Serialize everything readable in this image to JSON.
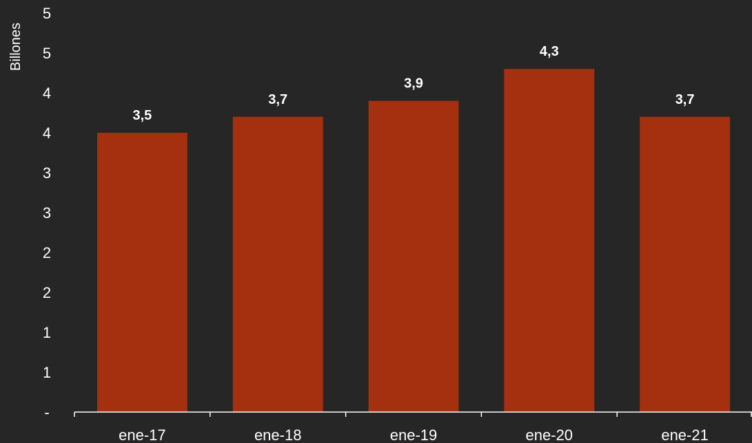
{
  "chart_data": {
    "type": "bar",
    "categories": [
      "ene-17",
      "ene-18",
      "ene-19",
      "ene-20",
      "ene-21"
    ],
    "values": [
      3.5,
      3.7,
      3.9,
      4.3,
      3.7
    ],
    "data_labels": [
      "3,5",
      "3,7",
      "3,9",
      "4,3",
      "3,7"
    ],
    "ylabel": "Billones",
    "ylim": [
      0,
      5
    ],
    "y_tick_labels": [
      "-",
      "1",
      "1",
      "2",
      "2",
      "3",
      "3",
      "4",
      "4",
      "5",
      "5"
    ],
    "grid": false,
    "legend": "none"
  },
  "colors": {
    "background": "#262626",
    "bar": "#A5300F",
    "text": "#ffffff",
    "axis": "#ffffff"
  }
}
